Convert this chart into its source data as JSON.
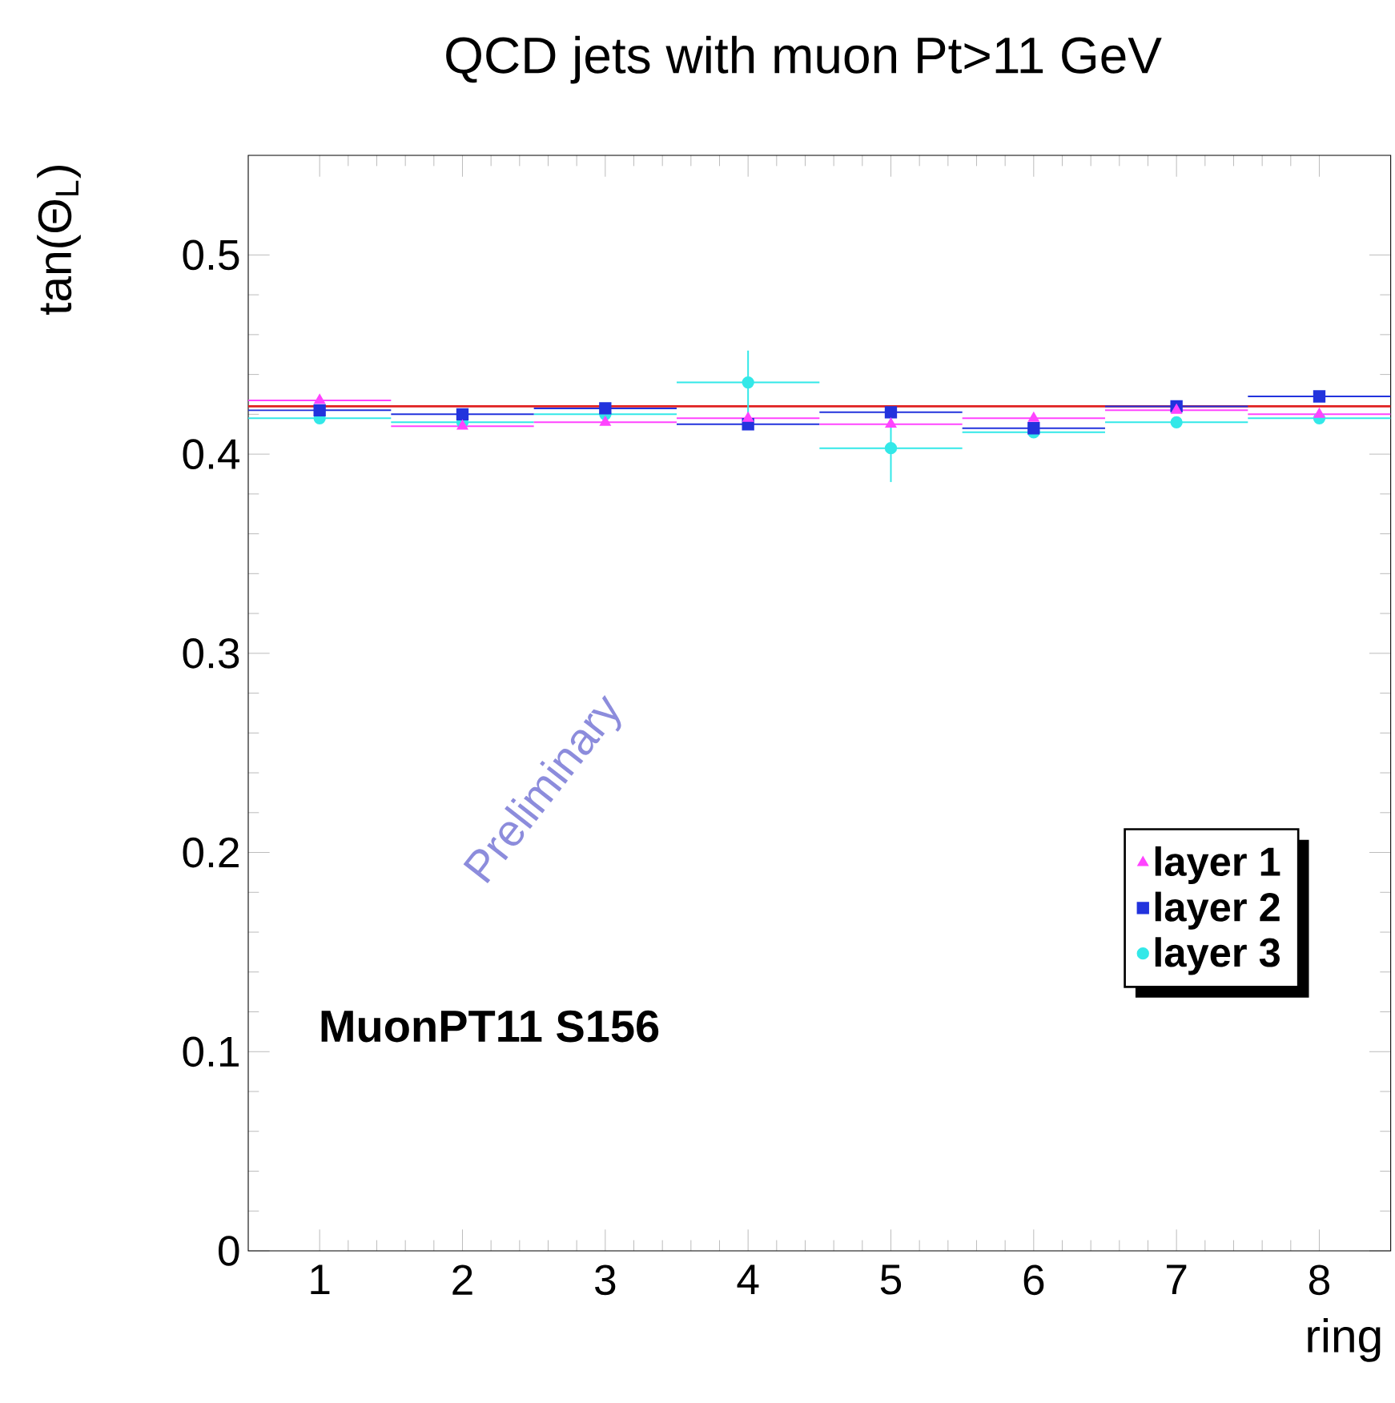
{
  "chart_data": {
    "type": "scatter",
    "title": "QCD jets with muon Pt>11 GeV",
    "xlabel": "ring",
    "ylabel": "tan(Θ$_{L}$)",
    "x": [
      1,
      2,
      3,
      4,
      5,
      6,
      7,
      8
    ],
    "xlim": [
      0.5,
      8.5
    ],
    "ylim": [
      0,
      0.55
    ],
    "xticks": [
      1,
      2,
      3,
      4,
      5,
      6,
      7,
      8
    ],
    "yticks": [
      0,
      0.1,
      0.2,
      0.3,
      0.4,
      0.5
    ],
    "series": [
      {
        "name": "layer 1",
        "color": "#ff44ff",
        "marker": "triangle",
        "values": [
          0.427,
          0.414,
          0.416,
          0.418,
          0.415,
          0.418,
          0.422,
          0.42
        ],
        "xerrors": [
          0.5,
          0.5,
          0.5,
          0.5,
          0.5,
          0.5,
          0.5,
          0.5
        ],
        "errors": [
          null,
          null,
          null,
          null,
          null,
          null,
          null,
          null
        ]
      },
      {
        "name": "layer 2",
        "color": "#2233dd",
        "marker": "square",
        "values": [
          0.422,
          0.42,
          0.423,
          0.415,
          0.421,
          0.413,
          0.424,
          0.429
        ],
        "xerrors": [
          0.5,
          0.5,
          0.5,
          0.5,
          0.5,
          0.5,
          0.5,
          0.5
        ],
        "errors": [
          null,
          null,
          null,
          null,
          null,
          null,
          null,
          null
        ]
      },
      {
        "name": "layer 3",
        "color": "#33e8e8",
        "marker": "circle",
        "values": [
          0.418,
          0.416,
          0.42,
          0.436,
          0.403,
          0.411,
          0.416,
          0.418
        ],
        "xerrors": [
          0.5,
          0.5,
          0.5,
          0.5,
          0.5,
          0.5,
          0.5,
          0.5
        ],
        "errors": [
          null,
          null,
          null,
          0.016,
          0.017,
          null,
          null,
          null
        ]
      }
    ],
    "ref_lines": [
      {
        "axis": "y",
        "value": 0.424,
        "color": "#e02020"
      }
    ],
    "annotations": [
      "MuonPT11 S156",
      "Preliminary"
    ],
    "legend": "right",
    "grid": false
  }
}
